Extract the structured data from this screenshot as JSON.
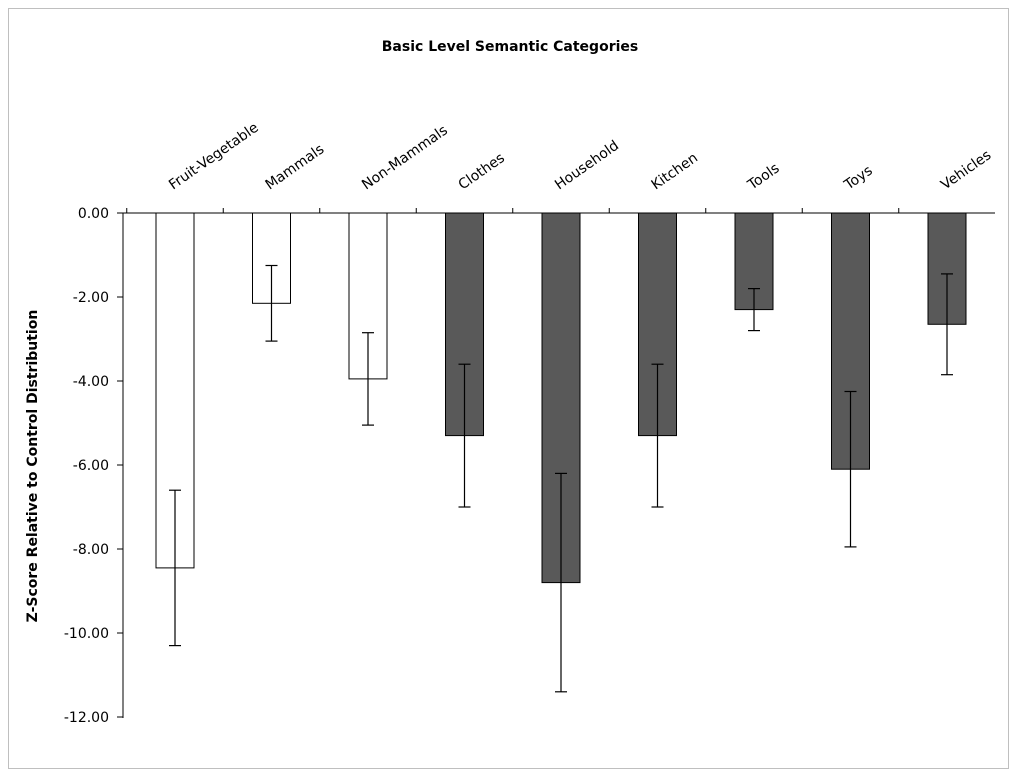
{
  "chart_data": {
    "type": "bar",
    "title": "Basic Level Semantic Categories",
    "xlabel": "",
    "ylabel": "Z-Score Relative to Control Distribution",
    "ylim": [
      -12,
      0
    ],
    "yticks": [
      "0.00",
      "-2.00",
      "-4.00",
      "-6.00",
      "-8.00",
      "-10.00",
      "-12.00"
    ],
    "ytick_values": [
      0,
      -2,
      -4,
      -6,
      -8,
      -10,
      -12
    ],
    "categories": [
      "Fruit-Vegetable",
      "Mammals",
      "Non-Mammals",
      "Clothes",
      "Household",
      "Kitchen",
      "Tools",
      "Toys",
      "Vehicles"
    ],
    "values": [
      -8.45,
      -2.15,
      -3.95,
      -5.3,
      -8.8,
      -5.3,
      -2.3,
      -6.1,
      -2.65
    ],
    "error": [
      1.85,
      0.9,
      1.1,
      1.7,
      2.6,
      1.7,
      0.5,
      1.85,
      1.2
    ],
    "bar_colors": [
      "#ffffff",
      "#ffffff",
      "#ffffff",
      "#595959",
      "#595959",
      "#595959",
      "#595959",
      "#595959",
      "#595959"
    ],
    "x_axis_position": "top",
    "grid": false,
    "legend": "none"
  },
  "colors": {
    "living_fill": "#ffffff",
    "nonliving_fill": "#595959",
    "bar_stroke": "#000000",
    "axis": "#000000",
    "frame": "#bfbfbf"
  }
}
